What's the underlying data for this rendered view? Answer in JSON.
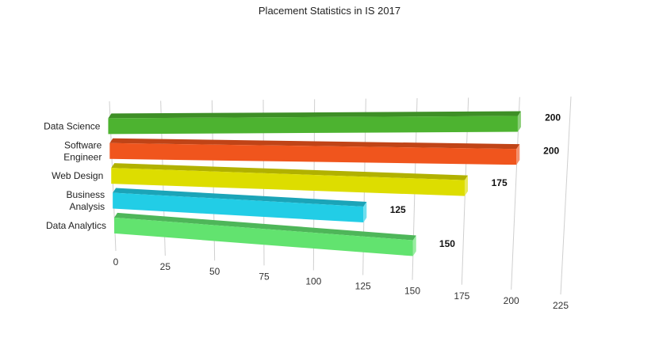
{
  "chart_data": {
    "type": "bar",
    "orientation": "horizontal",
    "three_d": true,
    "title": "Placement Statistics in IS 2017",
    "xlabel": "",
    "ylabel": "",
    "categories": [
      {
        "lines": [
          "Data Science"
        ],
        "value": 200,
        "color": "#4db330"
      },
      {
        "lines": [
          "Software",
          "Engineer"
        ],
        "value": 200,
        "color": "#f0551d"
      },
      {
        "lines": [
          "Web Design"
        ],
        "value": 175,
        "color": "#dddd00"
      },
      {
        "lines": [
          "Business",
          "Analysis"
        ],
        "value": 125,
        "color": "#22cde6"
      },
      {
        "lines": [
          "Data Analytics"
        ],
        "value": 150,
        "color": "#62e36f"
      }
    ],
    "ticks": [
      "0",
      "25",
      "50",
      "75",
      "100",
      "125",
      "150",
      "175",
      "200",
      "225"
    ],
    "xlim": [
      0,
      225
    ],
    "grid": true,
    "legend": "none"
  }
}
